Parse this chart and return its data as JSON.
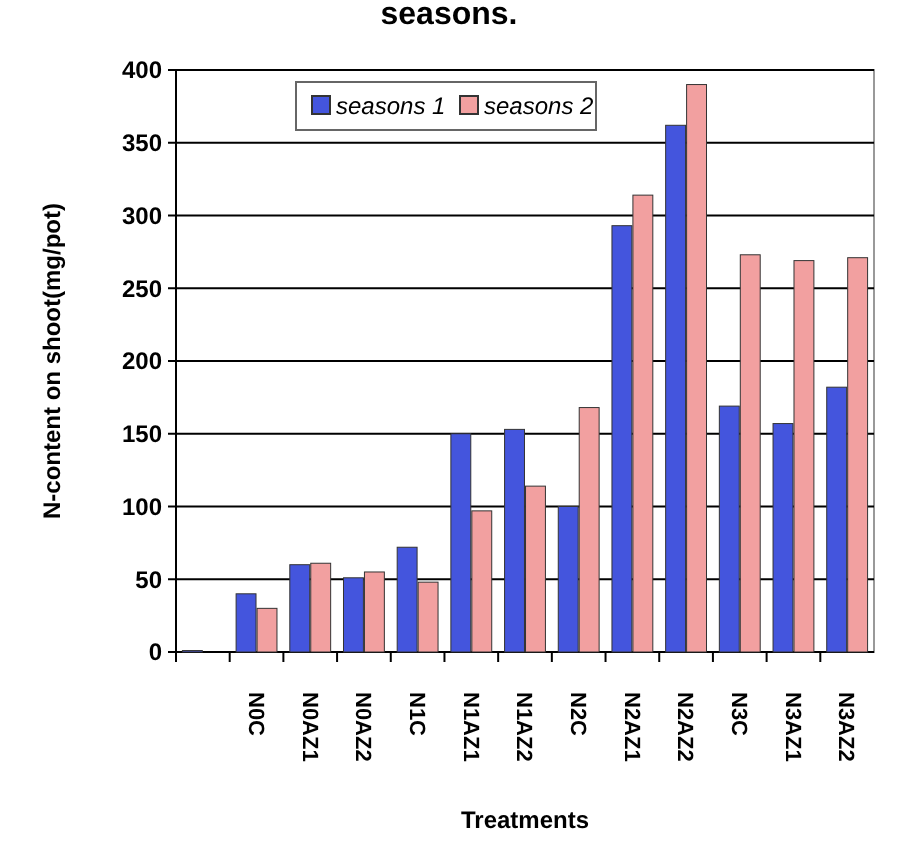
{
  "chart_data": {
    "type": "bar",
    "title": "seasons.",
    "xlabel": "Treatments",
    "ylabel": "N-content on shoot(mg/pot)",
    "categories": [
      null,
      "N0C",
      "N0AZ1",
      "N0AZ2",
      "N1C",
      "N1AZ1",
      "N1AZ2",
      "N2C",
      "N2AZ1",
      "N2AZ2",
      "N3C",
      "N3AZ1",
      "N3AZ2"
    ],
    "series": [
      {
        "name": "seasons 1",
        "color": "#4455dd",
        "values": [
          1,
          40,
          60,
          51,
          72,
          150,
          153,
          100,
          293,
          362,
          169,
          157,
          182
        ]
      },
      {
        "name": "seasons 2",
        "color": "#f2a0a0",
        "values": [
          null,
          30,
          61,
          55,
          48,
          97,
          114,
          168,
          314,
          390,
          273,
          269,
          271
        ]
      }
    ],
    "ylim": [
      0,
      400
    ],
    "yticks": [
      0,
      50,
      100,
      150,
      200,
      250,
      300,
      350,
      400
    ],
    "grid": "y",
    "legend": "top"
  }
}
